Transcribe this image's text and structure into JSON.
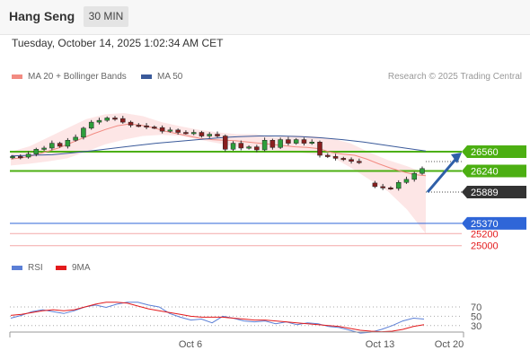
{
  "header": {
    "title": "Hang Seng",
    "timeframe": "30 MIN"
  },
  "timestamp": "Tuesday, October 14, 2025 1:02:34 AM CET",
  "legend": {
    "bb_label": "MA 20 + Bollinger Bands",
    "ma50_label": "MA 50",
    "bb_color": "#f28b82",
    "ma50_color": "#3a5a9a"
  },
  "credit": "Research © 2025 Trading Central",
  "rsi_legend": {
    "rsi_label": "RSI",
    "ma_label": "9MA",
    "rsi_color": "#5b7fd6",
    "ma_color": "#e31a1c"
  },
  "chart_data": [
    {
      "type": "candlestick",
      "title": "Hang Seng",
      "timeframe": "30 MIN",
      "ylim": [
        24950,
        27200
      ],
      "x_tick_labels": [
        "Oct 6",
        "Oct 13",
        "Oct 20"
      ],
      "price_path": [
        26480,
        26470,
        26520,
        26600,
        26620,
        26700,
        26650,
        26750,
        26800,
        26950,
        27050,
        27080,
        27120,
        27110,
        27050,
        27000,
        26990,
        26970,
        26960,
        26900,
        26920,
        26880,
        26870,
        26880,
        26820,
        26850,
        26820,
        26600,
        26700,
        26620,
        26640,
        26590,
        26750,
        26630,
        26760,
        26700,
        26760,
        26700,
        26720,
        26500,
        26480,
        26450,
        26430,
        26400,
        26380,
        26040,
        25980,
        25960,
        25950,
        26050,
        26100,
        26200,
        26280
      ],
      "gap_after_index": 44,
      "ma20_path": [
        26440,
        26460,
        26500,
        26560,
        26620,
        26700,
        26780,
        26860,
        26930,
        26990,
        27020,
        27000,
        26960,
        26900,
        26860,
        26820,
        26780,
        26760,
        26750,
        26740,
        26720,
        26700,
        26680,
        26660,
        26640,
        26630,
        26610,
        26550,
        26520,
        26500,
        26440,
        26360,
        26290,
        26230,
        26180,
        26160
      ],
      "ma50_path": [
        26490,
        26500,
        26510,
        26540,
        26580,
        26620,
        26660,
        26700,
        26730,
        26760,
        26790,
        26810,
        26820,
        26820,
        26810,
        26790,
        26760,
        26720,
        26670,
        26620,
        26570
      ],
      "bollinger_upper": [
        26560,
        26650,
        26800,
        26950,
        27100,
        27180,
        27200,
        27150,
        27050,
        26980,
        26920,
        26880,
        26850,
        26850,
        26800,
        26830,
        26820,
        26780,
        26700,
        26550,
        26420,
        26320,
        26200
      ],
      "bollinger_lower": [
        26330,
        26360,
        26400,
        26450,
        26560,
        26680,
        26760,
        26820,
        26840,
        26820,
        26760,
        26700,
        26640,
        26590,
        26580,
        26560,
        26520,
        26480,
        26300,
        26100,
        25900,
        25600,
        25200
      ],
      "levels": [
        {
          "value": 26560,
          "label": "26560",
          "kind": "resistance",
          "color": "#4caf12"
        },
        {
          "value": 26240,
          "label": "26240",
          "kind": "resistance",
          "color": "#4caf12"
        },
        {
          "value": 25889,
          "label": "25889",
          "kind": "last",
          "color": "#333333"
        },
        {
          "value": 25370,
          "label": "25370",
          "kind": "pivot",
          "color": "#2f66d8"
        },
        {
          "value": 25200,
          "label": "25200",
          "kind": "support",
          "color": "#e31a1c"
        },
        {
          "value": 25000,
          "label": "25000",
          "kind": "support",
          "color": "#e31a1c"
        }
      ],
      "target_arrow": {
        "from": 25889,
        "to": 26560,
        "color": "#2f5fa8"
      }
    },
    {
      "type": "line",
      "title": "RSI",
      "series": [
        {
          "name": "RSI",
          "values": [
            46,
            52,
            60,
            64,
            60,
            56,
            62,
            70,
            74,
            69,
            76,
            80,
            80,
            74,
            70,
            56,
            48,
            42,
            44,
            36,
            50,
            46,
            40,
            38,
            40,
            34,
            38,
            32,
            36,
            34,
            28,
            26,
            20,
            14,
            16,
            22,
            30,
            40,
            46,
            44
          ]
        },
        {
          "name": "9MA",
          "values": [
            52,
            54,
            58,
            62,
            64,
            62,
            64,
            70,
            76,
            80,
            80,
            78,
            72,
            66,
            62,
            58,
            54,
            50,
            48,
            48,
            48,
            46,
            44,
            42,
            42,
            40,
            38,
            36,
            34,
            32,
            30,
            28,
            24,
            20,
            18,
            17,
            18,
            22,
            28,
            32
          ]
        }
      ],
      "ylim": [
        0,
        100
      ],
      "y_ticks": [
        "70",
        "50",
        "30"
      ],
      "guide_levels": [
        70,
        50,
        30
      ]
    }
  ]
}
